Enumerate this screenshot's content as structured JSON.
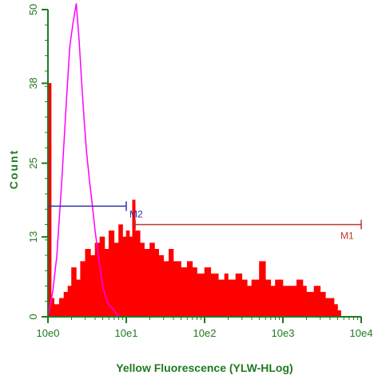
{
  "chart_data": {
    "type": "histogram",
    "xlabel": "Yellow Fluorescence (YLW-HLog)",
    "ylabel": "Count",
    "x_scale": "log",
    "x_range": [
      1,
      10000
    ],
    "y_range": [
      0,
      50
    ],
    "x_ticks": [
      {
        "value": 1,
        "label": "10e0"
      },
      {
        "value": 10,
        "label": "10e1"
      },
      {
        "value": 100,
        "label": "10e2"
      },
      {
        "value": 1000,
        "label": "10e3"
      },
      {
        "value": 10000,
        "label": "10e4"
      }
    ],
    "y_ticks": [
      {
        "value": 0,
        "label": "0"
      },
      {
        "value": 13,
        "label": "13"
      },
      {
        "value": 25,
        "label": "25"
      },
      {
        "value": 38,
        "label": "38"
      },
      {
        "value": 50,
        "label": "50"
      }
    ],
    "colors": {
      "axis": "#1f7a1f",
      "filled_series": "#ff0000",
      "outline_series": "#ff00ff",
      "marker_M1": "#c0392b",
      "marker_M2": "#3333aa"
    },
    "series": [
      {
        "style": "filled",
        "color": "#ff0000",
        "x": [
          1.0,
          1.1,
          1.2,
          1.4,
          1.6,
          1.8,
          2.0,
          2.3,
          2.6,
          3.0,
          3.5,
          4.0,
          4.6,
          5.3,
          6.0,
          7.0,
          8.0,
          9.0,
          10,
          11,
          12,
          13,
          15,
          17,
          20,
          23,
          26,
          30,
          35,
          40,
          50,
          60,
          70,
          80,
          100,
          120,
          150,
          180,
          200,
          250,
          300,
          350,
          400,
          500,
          600,
          700,
          800,
          1000,
          1200,
          1500,
          1800,
          2000,
          2500,
          3000,
          3500,
          4000,
          4500,
          5000,
          5500
        ],
        "y": [
          38,
          3,
          2,
          3,
          4,
          5,
          8,
          6,
          9,
          11,
          10,
          12,
          13,
          11,
          14,
          12,
          15,
          13,
          14,
          13,
          19,
          14,
          12,
          11,
          12,
          11,
          10,
          9,
          11,
          9,
          8,
          9,
          8,
          7,
          8,
          7,
          6,
          7,
          6,
          7,
          6,
          5,
          6,
          9,
          6,
          5,
          6,
          5,
          5,
          6,
          5,
          4,
          5,
          4,
          3,
          3,
          2,
          1,
          0
        ]
      },
      {
        "style": "outline",
        "color": "#ff00ff",
        "x": [
          1.0,
          1.15,
          1.3,
          1.5,
          1.7,
          1.9,
          2.1,
          2.3,
          2.5,
          2.7,
          2.9,
          3.1,
          3.4,
          3.7,
          4.0,
          4.5,
          5.0,
          5.5,
          6.0,
          7.0,
          8.0
        ],
        "y": [
          0,
          4,
          10,
          22,
          34,
          44,
          48,
          51,
          45,
          38,
          32,
          27,
          22,
          18,
          14,
          9,
          5,
          3,
          2,
          1,
          0
        ]
      }
    ],
    "markers": [
      {
        "label": "M1",
        "x_start": 13,
        "x_end": 10000,
        "y": 15
      },
      {
        "label": "M2",
        "x_start": 1,
        "x_end": 10,
        "y": 18
      }
    ]
  }
}
